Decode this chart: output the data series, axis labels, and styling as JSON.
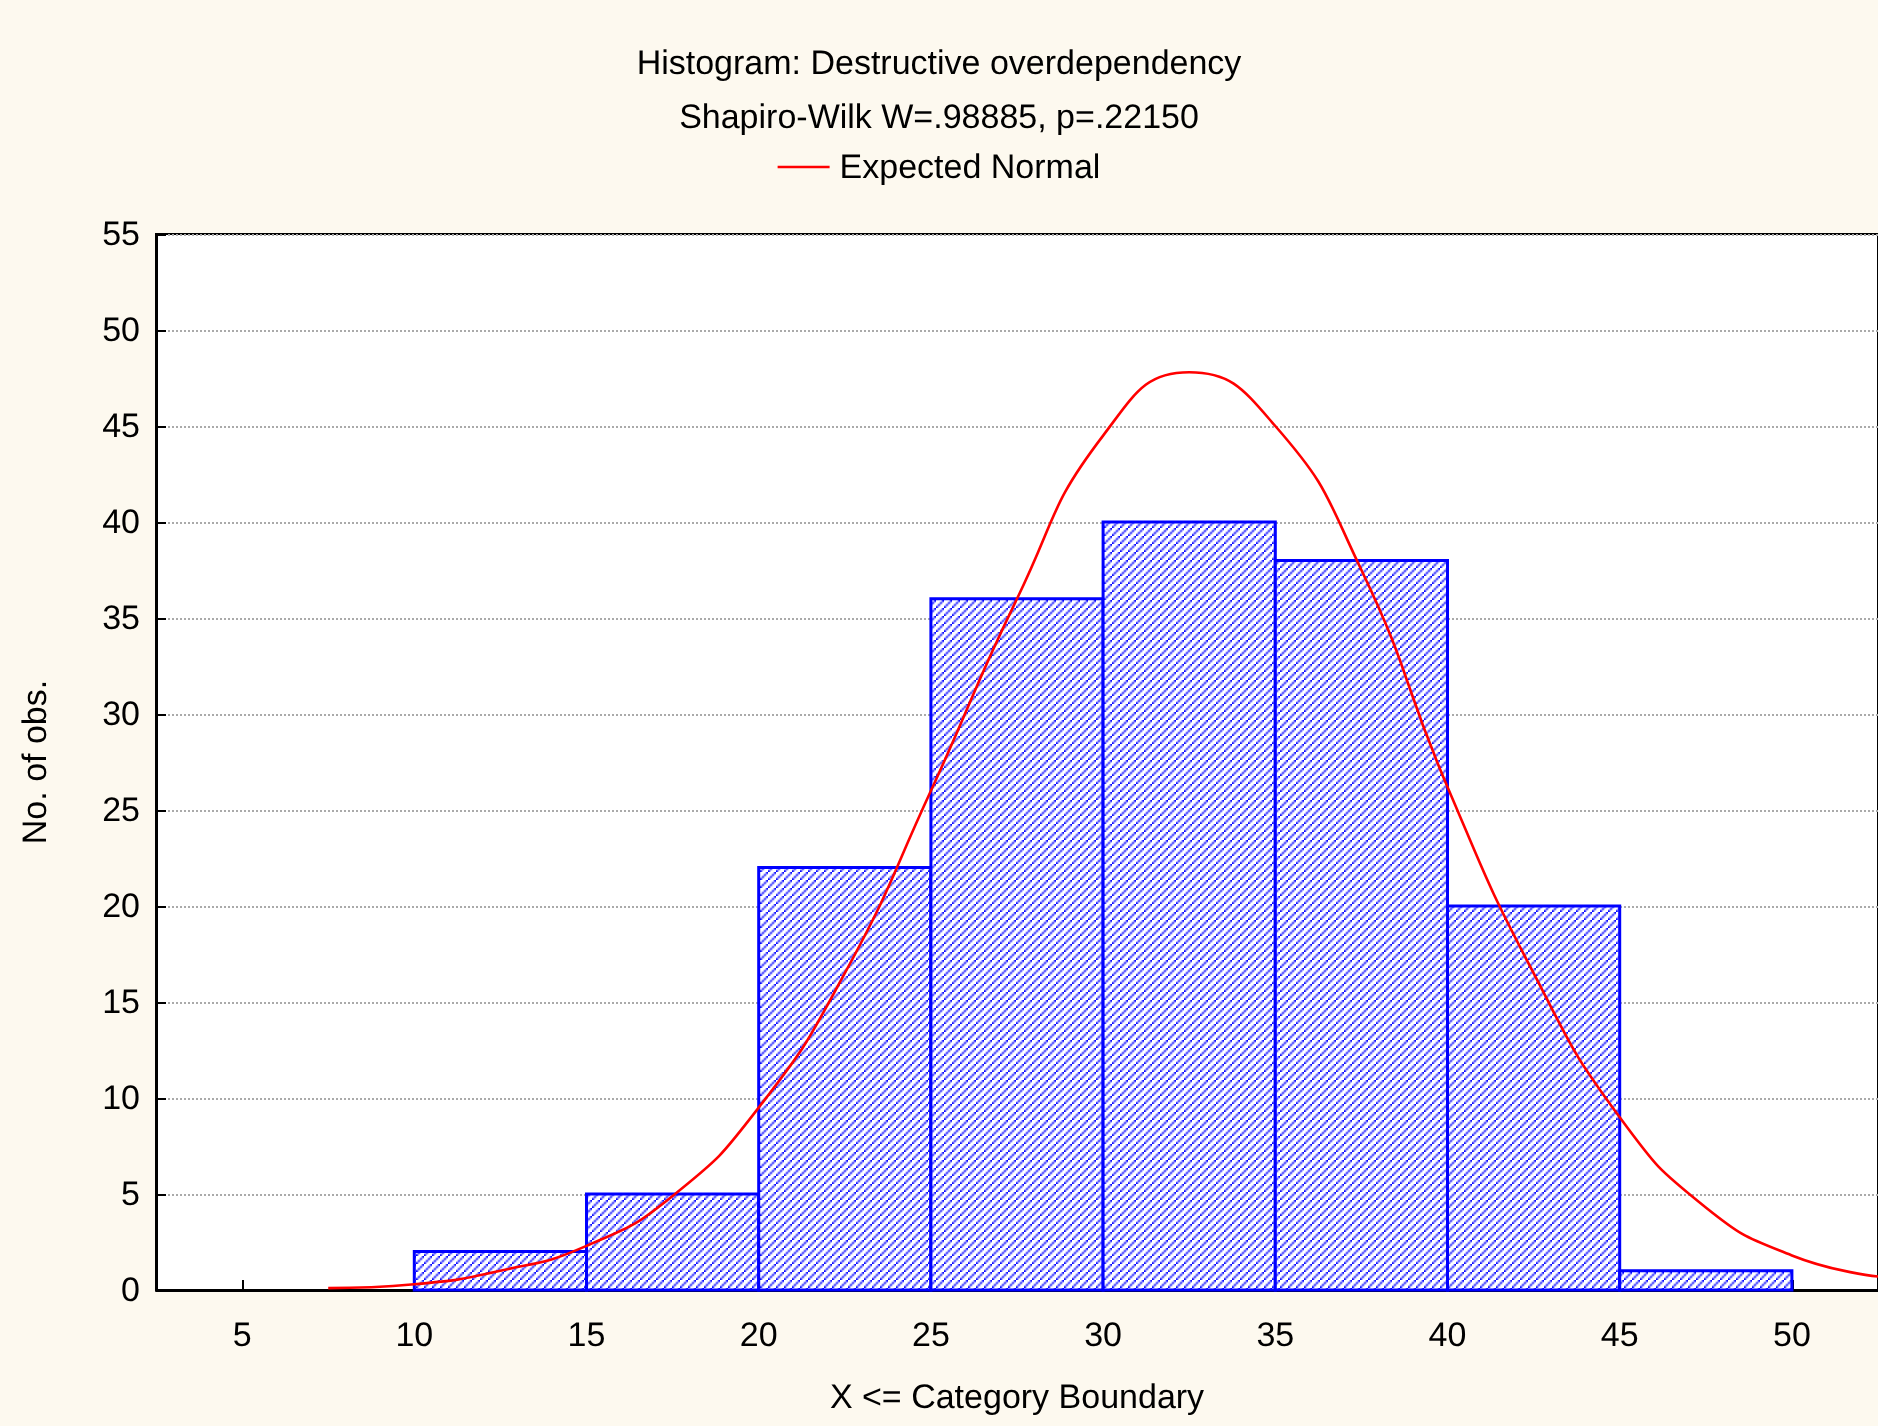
{
  "chart_data": {
    "type": "histogram",
    "title": "Histogram: Destructive overdependency",
    "subtitle": "Shapiro-Wilk W=.98885, p=.22150",
    "xlabel": "X <= Category Boundary",
    "ylabel": "No. of obs.",
    "bins": [
      10,
      15,
      20,
      25,
      30,
      35,
      40,
      45,
      50
    ],
    "values": [
      2,
      5,
      22,
      36,
      40,
      38,
      20,
      1
    ],
    "color": "#0000ff",
    "series": [
      {
        "name": "Expected Normal",
        "type": "line",
        "color": "#ff0000",
        "x": [
          7.5,
          10,
          12.5,
          15,
          17.5,
          20,
          22.5,
          25,
          27.5,
          30,
          32.5,
          35,
          37.5,
          40,
          42.5,
          45,
          47.5,
          50,
          52.5
        ],
        "values": [
          0.1,
          0.3,
          1,
          2.3,
          4.9,
          9.5,
          16.5,
          26,
          36,
          44.5,
          47.8,
          45,
          37.5,
          26.2,
          16.5,
          9,
          4.3,
          1.8,
          0.7
        ]
      }
    ],
    "xlim": [
      2.5,
      52.5
    ],
    "xticks": [
      5,
      10,
      15,
      20,
      25,
      30,
      35,
      40,
      45,
      50
    ],
    "ylim": [
      0,
      55
    ],
    "yticks": [
      0,
      5,
      10,
      15,
      20,
      25,
      30,
      35,
      40,
      45,
      50,
      55
    ],
    "grid": "y",
    "legend": "top",
    "marker": "none"
  }
}
